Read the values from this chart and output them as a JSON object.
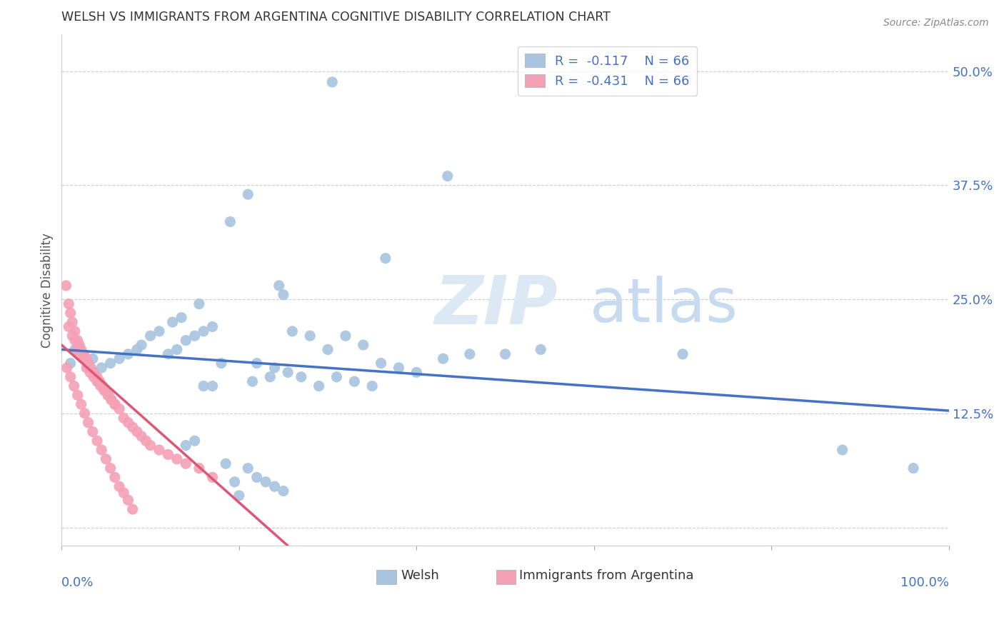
{
  "title": "WELSH VS IMMIGRANTS FROM ARGENTINA COGNITIVE DISABILITY CORRELATION CHART",
  "source": "Source: ZipAtlas.com",
  "ylabel": "Cognitive Disability",
  "xlim": [
    0.0,
    1.0
  ],
  "ylim": [
    -0.02,
    0.54
  ],
  "yticks": [
    0.0,
    0.125,
    0.25,
    0.375,
    0.5
  ],
  "ytick_labels": [
    "",
    "12.5%",
    "25.0%",
    "37.5%",
    "50.0%"
  ],
  "welsh_R": -0.117,
  "welsh_N": 66,
  "arg_R": -0.431,
  "arg_N": 66,
  "welsh_color": "#a8c4e0",
  "arg_color": "#f4a0b5",
  "trend_welsh_color": "#4472c4",
  "trend_arg_color": "#e05575",
  "legend_label_welsh": "Welsh",
  "legend_label_arg": "Immigrants from Argentina",
  "welsh_x": [
    0.305,
    0.435,
    0.365,
    0.21,
    0.19,
    0.245,
    0.25,
    0.155,
    0.135,
    0.125,
    0.11,
    0.1,
    0.09,
    0.085,
    0.075,
    0.065,
    0.055,
    0.045,
    0.035,
    0.025,
    0.015,
    0.01,
    0.17,
    0.16,
    0.15,
    0.14,
    0.13,
    0.12,
    0.22,
    0.24,
    0.26,
    0.28,
    0.3,
    0.32,
    0.34,
    0.36,
    0.38,
    0.4,
    0.43,
    0.46,
    0.5,
    0.54,
    0.7,
    0.88,
    0.96,
    0.27,
    0.29,
    0.31,
    0.33,
    0.35,
    0.255,
    0.235,
    0.215,
    0.18,
    0.17,
    0.16,
    0.15,
    0.14,
    0.185,
    0.195,
    0.2,
    0.21,
    0.22,
    0.23,
    0.24,
    0.25
  ],
  "welsh_y": [
    0.488,
    0.385,
    0.295,
    0.365,
    0.335,
    0.265,
    0.255,
    0.245,
    0.23,
    0.225,
    0.215,
    0.21,
    0.2,
    0.195,
    0.19,
    0.185,
    0.18,
    0.175,
    0.185,
    0.19,
    0.195,
    0.18,
    0.22,
    0.215,
    0.21,
    0.205,
    0.195,
    0.19,
    0.18,
    0.175,
    0.215,
    0.21,
    0.195,
    0.21,
    0.2,
    0.18,
    0.175,
    0.17,
    0.185,
    0.19,
    0.19,
    0.195,
    0.19,
    0.085,
    0.065,
    0.165,
    0.155,
    0.165,
    0.16,
    0.155,
    0.17,
    0.165,
    0.16,
    0.18,
    0.155,
    0.155,
    0.095,
    0.09,
    0.07,
    0.05,
    0.035,
    0.065,
    0.055,
    0.05,
    0.045,
    0.04
  ],
  "arg_x": [
    0.005,
    0.008,
    0.01,
    0.012,
    0.015,
    0.018,
    0.02,
    0.022,
    0.025,
    0.028,
    0.03,
    0.033,
    0.036,
    0.04,
    0.043,
    0.046,
    0.05,
    0.053,
    0.056,
    0.06,
    0.008,
    0.012,
    0.015,
    0.018,
    0.021,
    0.025,
    0.028,
    0.032,
    0.036,
    0.04,
    0.044,
    0.048,
    0.052,
    0.056,
    0.06,
    0.065,
    0.07,
    0.075,
    0.08,
    0.085,
    0.09,
    0.095,
    0.1,
    0.11,
    0.12,
    0.13,
    0.14,
    0.155,
    0.17,
    0.006,
    0.01,
    0.014,
    0.018,
    0.022,
    0.026,
    0.03,
    0.035,
    0.04,
    0.045,
    0.05,
    0.055,
    0.06,
    0.065,
    0.07,
    0.075,
    0.08
  ],
  "arg_y": [
    0.265,
    0.245,
    0.235,
    0.225,
    0.215,
    0.205,
    0.2,
    0.195,
    0.19,
    0.185,
    0.18,
    0.175,
    0.17,
    0.165,
    0.16,
    0.155,
    0.15,
    0.145,
    0.14,
    0.135,
    0.22,
    0.21,
    0.205,
    0.195,
    0.19,
    0.185,
    0.175,
    0.17,
    0.165,
    0.16,
    0.155,
    0.15,
    0.145,
    0.14,
    0.135,
    0.13,
    0.12,
    0.115,
    0.11,
    0.105,
    0.1,
    0.095,
    0.09,
    0.085,
    0.08,
    0.075,
    0.07,
    0.065,
    0.055,
    0.175,
    0.165,
    0.155,
    0.145,
    0.135,
    0.125,
    0.115,
    0.105,
    0.095,
    0.085,
    0.075,
    0.065,
    0.055,
    0.045,
    0.038,
    0.03,
    0.02
  ],
  "welsh_trend_x0": 0.0,
  "welsh_trend_x1": 1.0,
  "welsh_trend_y0": 0.195,
  "welsh_trend_y1": 0.128,
  "arg_trend_x0": 0.0,
  "arg_trend_x1": 0.255,
  "arg_trend_y0": 0.2,
  "arg_trend_y1": -0.02
}
